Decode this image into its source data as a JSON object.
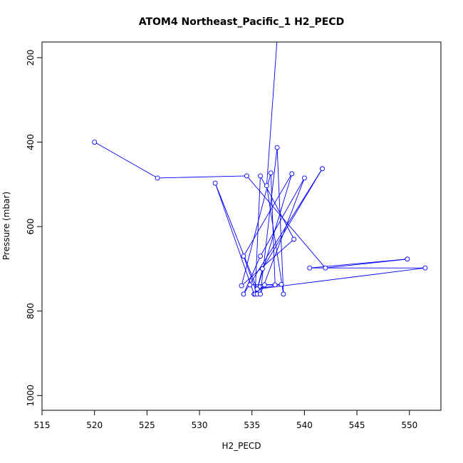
{
  "chart_data": {
    "type": "line",
    "title": "ATOM4 Northeast_Pacific_1 H2_PECD",
    "xlabel": "H2_PECD",
    "ylabel": "Pressure (mbar)",
    "xlim": [
      515,
      553
    ],
    "ylim": [
      1035,
      163
    ],
    "y_reversed": true,
    "x_ticks": [
      515,
      520,
      525,
      530,
      535,
      540,
      545,
      550
    ],
    "y_ticks": [
      200,
      400,
      600,
      800,
      1000
    ],
    "grid": false,
    "legend": "none",
    "colors": {
      "series": "#0000ff",
      "axis": "#000000",
      "background": "#ffffff"
    },
    "x": [
      520,
      526,
      534.5,
      542,
      549.8,
      540.5,
      551.5,
      535.5,
      531.5,
      535.2,
      536.2,
      535.3,
      535.8,
      539,
      534,
      536.8,
      537.2,
      534.8,
      537.8,
      535.5,
      538.8,
      534.2,
      535.5,
      535.5,
      536,
      541.7,
      534.2,
      535.8,
      540,
      535.8,
      537.4,
      538,
      536.4,
      537.5
    ],
    "y": [
      400,
      485,
      480,
      698,
      677,
      698,
      698,
      748,
      497,
      760,
      738,
      760,
      480,
      630,
      740,
      473,
      738,
      738,
      737,
      748,
      475,
      670,
      760,
      748,
      700,
      463,
      760,
      670,
      485,
      760,
      413,
      760,
      503,
      120
    ]
  }
}
